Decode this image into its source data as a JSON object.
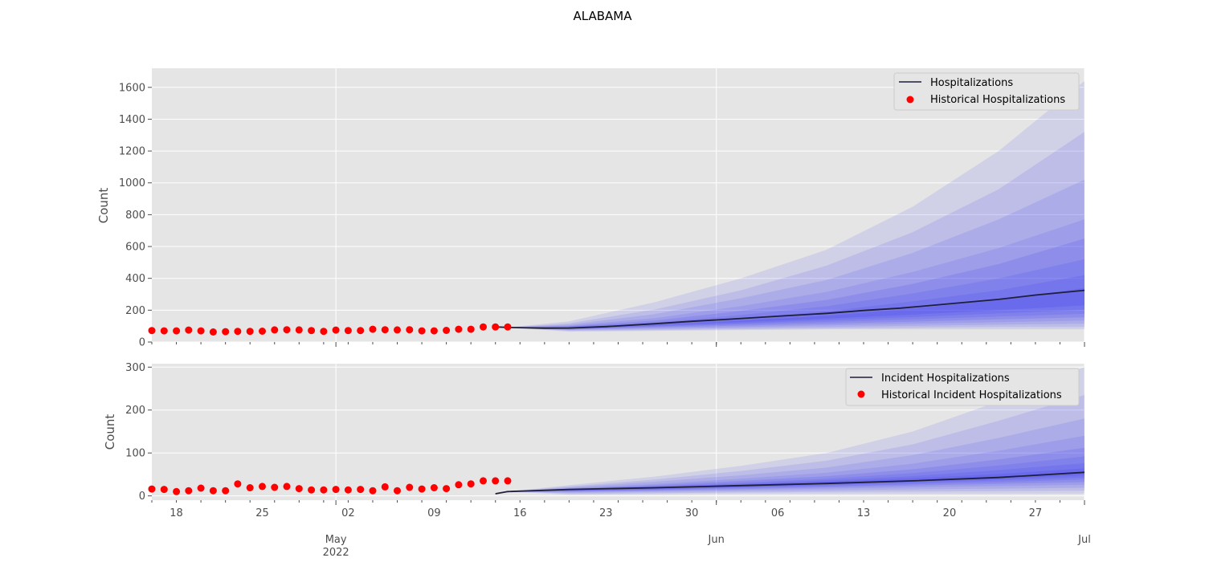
{
  "figure": {
    "title": "ALABAMA"
  },
  "colors": {
    "plot_bg": "#e5e5e5",
    "grid": "#ffffff",
    "median_line": "#1f1f3a",
    "historical_points": "#ff0000",
    "band": "#3b3bf0"
  },
  "x_axis": {
    "minor_date_labels": [
      "18",
      "25",
      "02",
      "09",
      "16",
      "23",
      "30",
      "06",
      "13",
      "20",
      "27"
    ],
    "month_labels": [
      {
        "month": "May",
        "year": "2022"
      },
      {
        "month": "Jun",
        "year": ""
      },
      {
        "month": "Jul",
        "year": ""
      }
    ]
  },
  "chart_data": [
    {
      "type": "line",
      "title": "ALABAMA",
      "ylabel": "Count",
      "xlabel": "",
      "ylim": [
        0,
        1720
      ],
      "yticks": [
        0,
        200,
        400,
        600,
        800,
        1000,
        1200,
        1400,
        1600
      ],
      "xlim": [
        "2022-04-16",
        "2022-07-01"
      ],
      "grid": true,
      "legend": {
        "position": "top-right",
        "entries": [
          "Hospitalizations",
          "Historical Hospitalizations"
        ]
      },
      "series": [
        {
          "name": "Historical Hospitalizations",
          "kind": "scatter",
          "x": [
            "2022-04-16",
            "2022-04-17",
            "2022-04-18",
            "2022-04-19",
            "2022-04-20",
            "2022-04-21",
            "2022-04-22",
            "2022-04-23",
            "2022-04-24",
            "2022-04-25",
            "2022-04-26",
            "2022-04-27",
            "2022-04-28",
            "2022-04-29",
            "2022-04-30",
            "2022-05-01",
            "2022-05-02",
            "2022-05-03",
            "2022-05-04",
            "2022-05-05",
            "2022-05-06",
            "2022-05-07",
            "2022-05-08",
            "2022-05-09",
            "2022-05-10",
            "2022-05-11",
            "2022-05-12",
            "2022-05-13",
            "2022-05-14",
            "2022-05-15"
          ],
          "y": [
            72,
            70,
            70,
            75,
            70,
            63,
            65,
            67,
            67,
            68,
            76,
            77,
            76,
            72,
            67,
            75,
            72,
            72,
            80,
            77,
            76,
            77,
            70,
            70,
            73,
            80,
            80,
            95,
            95,
            95
          ]
        },
        {
          "name": "Hospitalizations",
          "kind": "line",
          "x": [
            "2022-05-14",
            "2022-05-15",
            "2022-05-18",
            "2022-05-20",
            "2022-05-23",
            "2022-05-27",
            "2022-05-30",
            "2022-06-02",
            "2022-06-06",
            "2022-06-10",
            "2022-06-13",
            "2022-06-16",
            "2022-06-20",
            "2022-06-24",
            "2022-06-27",
            "2022-07-01"
          ],
          "y": [
            95,
            92,
            87,
            88,
            97,
            115,
            130,
            143,
            162,
            180,
            198,
            213,
            240,
            268,
            295,
            325
          ]
        },
        {
          "name": "Forecast upper bounds",
          "kind": "band-upper",
          "x": [
            "2022-05-15",
            "2022-05-20",
            "2022-05-27",
            "2022-06-03",
            "2022-06-10",
            "2022-06-17",
            "2022-06-24",
            "2022-07-01"
          ],
          "levels": [
            [
              92,
              130,
              250,
              400,
              580,
              850,
              1200,
              1640
            ],
            [
              92,
              118,
              205,
              325,
              480,
              690,
              960,
              1320
            ],
            [
              92,
              110,
              175,
              275,
              390,
              560,
              770,
              1020
            ],
            [
              92,
              104,
              150,
              225,
              315,
              440,
              590,
              770
            ],
            [
              92,
              100,
              135,
              195,
              265,
              365,
              490,
              650
            ],
            [
              92,
              97,
              122,
              170,
              225,
              305,
              400,
              520
            ],
            [
              92,
              95,
              112,
              150,
              192,
              255,
              325,
              420
            ],
            [
              92,
              93,
              104,
              134,
              165,
              210,
              265,
              340
            ]
          ]
        },
        {
          "name": "Forecast lower bounds",
          "kind": "band-lower",
          "x": [
            "2022-05-15",
            "2022-05-20",
            "2022-05-27",
            "2022-06-03",
            "2022-06-10",
            "2022-06-17",
            "2022-06-24",
            "2022-07-01"
          ],
          "levels": [
            [
              92,
              65,
              70,
              75,
              80,
              80,
              80,
              80
            ],
            [
              92,
              70,
              75,
              80,
              85,
              90,
              95,
              95
            ],
            [
              92,
              74,
              80,
              88,
              95,
              102,
              110,
              115
            ],
            [
              92,
              77,
              86,
              95,
              105,
              115,
              125,
              135
            ],
            [
              92,
              80,
              92,
              103,
              115,
              128,
              142,
              155
            ],
            [
              92,
              82,
              97,
              111,
              126,
              142,
              160,
              177
            ],
            [
              92,
              84,
              101,
              118,
              137,
              157,
              180,
              203
            ],
            [
              92,
              86,
              106,
              126,
              148,
              172,
              200,
              230
            ]
          ]
        }
      ]
    },
    {
      "type": "line",
      "ylabel": "Count",
      "xlabel": "",
      "ylim": [
        -10,
        308
      ],
      "yticks": [
        0,
        100,
        200,
        300
      ],
      "xlim": [
        "2022-04-16",
        "2022-07-01"
      ],
      "grid": true,
      "legend": {
        "position": "top-right",
        "entries": [
          "Incident Hospitalizations",
          "Historical Incident Hospitalizations"
        ]
      },
      "series": [
        {
          "name": "Historical Incident Hospitalizations",
          "kind": "scatter",
          "x": [
            "2022-04-16",
            "2022-04-17",
            "2022-04-18",
            "2022-04-19",
            "2022-04-20",
            "2022-04-21",
            "2022-04-22",
            "2022-04-23",
            "2022-04-24",
            "2022-04-25",
            "2022-04-26",
            "2022-04-27",
            "2022-04-28",
            "2022-04-29",
            "2022-04-30",
            "2022-05-01",
            "2022-05-02",
            "2022-05-03",
            "2022-05-04",
            "2022-05-05",
            "2022-05-06",
            "2022-05-07",
            "2022-05-08",
            "2022-05-09",
            "2022-05-10",
            "2022-05-11",
            "2022-05-12",
            "2022-05-13",
            "2022-05-14",
            "2022-05-15"
          ],
          "y": [
            16,
            15,
            10,
            12,
            18,
            12,
            12,
            28,
            19,
            22,
            20,
            22,
            17,
            14,
            14,
            15,
            14,
            15,
            12,
            21,
            12,
            20,
            16,
            19,
            17,
            26,
            28,
            35,
            35,
            35
          ]
        },
        {
          "name": "Incident Hospitalizations",
          "kind": "line",
          "x": [
            "2022-05-14",
            "2022-05-15",
            "2022-05-20",
            "2022-05-27",
            "2022-06-03",
            "2022-06-10",
            "2022-06-17",
            "2022-06-24",
            "2022-07-01"
          ],
          "y": [
            5,
            10,
            15,
            19,
            24,
            29,
            35,
            43,
            55
          ]
        },
        {
          "name": "Forecast upper bounds",
          "kind": "band-upper",
          "x": [
            "2022-05-15",
            "2022-05-20",
            "2022-05-27",
            "2022-06-03",
            "2022-06-10",
            "2022-06-17",
            "2022-06-24",
            "2022-07-01"
          ],
          "levels": [
            [
              10,
              25,
              45,
              70,
              100,
              150,
              220,
              300
            ],
            [
              10,
              22,
              38,
              58,
              82,
              120,
              175,
              235
            ],
            [
              10,
              20,
              33,
              48,
              66,
              95,
              135,
              180
            ],
            [
              10,
              18,
              28,
              40,
              54,
              75,
              105,
              140
            ],
            [
              10,
              17,
              25,
              35,
              46,
              62,
              85,
              112
            ],
            [
              10,
              16,
              23,
              31,
              40,
              53,
              71,
              92
            ],
            [
              10,
              16,
              21,
              28,
              36,
              46,
              60,
              76
            ],
            [
              10,
              15,
              20,
              26,
              33,
              41,
              51,
              64
            ]
          ]
        },
        {
          "name": "Forecast lower bounds",
          "kind": "band-lower",
          "x": [
            "2022-05-15",
            "2022-05-20",
            "2022-05-27",
            "2022-06-03",
            "2022-06-10",
            "2022-06-17",
            "2022-06-24",
            "2022-07-01"
          ],
          "levels": [
            [
              10,
              3,
              4,
              5,
              5,
              5,
              5,
              5
            ],
            [
              10,
              5,
              6,
              8,
              9,
              10,
              11,
              12
            ],
            [
              10,
              7,
              9,
              11,
              13,
              15,
              17,
              19
            ],
            [
              10,
              9,
              11,
              14,
              17,
              20,
              23,
              26
            ],
            [
              10,
              10,
              13,
              16,
              20,
              24,
              28,
              32
            ],
            [
              10,
              11,
              14,
              18,
              22,
              27,
              32,
              38
            ],
            [
              10,
              12,
              15,
              20,
              25,
              30,
              36,
              43
            ],
            [
              10,
              13,
              17,
              21,
              27,
              33,
              39,
              48
            ]
          ]
        }
      ]
    }
  ]
}
